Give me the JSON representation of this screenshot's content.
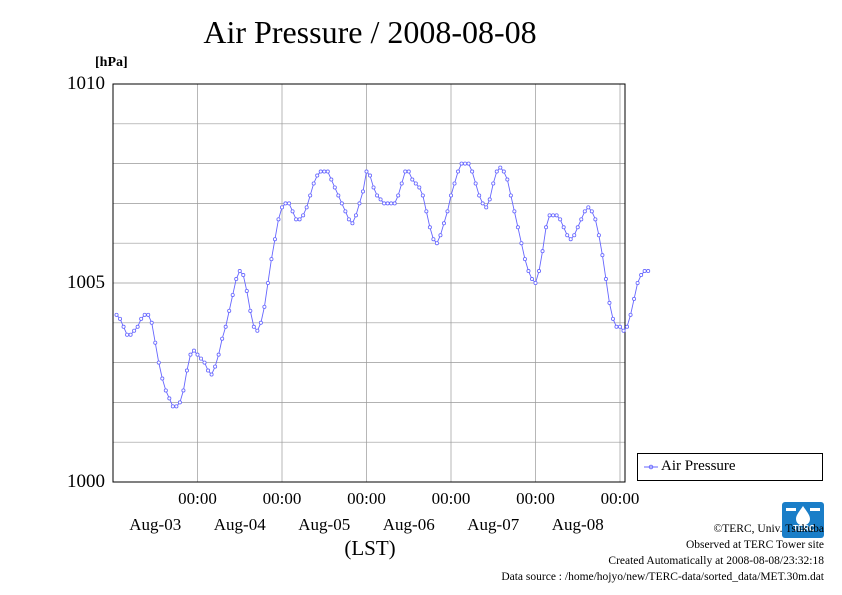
{
  "chart_data": {
    "type": "line",
    "title": "Air Pressure / 2008-08-08",
    "unit": "[hPa]",
    "xlabel": "(LST)",
    "ylim": [
      1000,
      1010
    ],
    "yticks": [
      "1010",
      "1005",
      "1000"
    ],
    "xticks": [
      {
        "time": "00:00",
        "date": "Aug-03"
      },
      {
        "time": "00:00",
        "date": "Aug-04"
      },
      {
        "time": "00:00",
        "date": "Aug-05"
      },
      {
        "time": "00:00",
        "date": "Aug-06"
      },
      {
        "time": "00:00",
        "date": "Aug-07"
      },
      {
        "time": "00:00",
        "date": "Aug-08"
      }
    ],
    "grid": true,
    "legend_position": "right",
    "series": [
      {
        "name": "Air Pressure",
        "color": "#6666ff",
        "x_start": "2008-08-02 01:00",
        "x_step": "1 hour",
        "values": [
          1004.2,
          1004.1,
          1003.9,
          1003.7,
          1003.7,
          1003.8,
          1003.9,
          1004.1,
          1004.2,
          1004.2,
          1004.0,
          1003.5,
          1003.0,
          1002.6,
          1002.3,
          1002.1,
          1001.9,
          1001.9,
          1002.0,
          1002.3,
          1002.8,
          1003.2,
          1003.3,
          1003.2,
          1003.1,
          1003.0,
          1002.8,
          1002.7,
          1002.9,
          1003.2,
          1003.6,
          1003.9,
          1004.3,
          1004.7,
          1005.1,
          1005.3,
          1005.2,
          1004.8,
          1004.3,
          1003.9,
          1003.8,
          1004.0,
          1004.4,
          1005.0,
          1005.6,
          1006.1,
          1006.6,
          1006.9,
          1007.0,
          1007.0,
          1006.8,
          1006.6,
          1006.6,
          1006.7,
          1006.9,
          1007.2,
          1007.5,
          1007.7,
          1007.8,
          1007.8,
          1007.8,
          1007.6,
          1007.4,
          1007.2,
          1007.0,
          1006.8,
          1006.6,
          1006.5,
          1006.7,
          1007.0,
          1007.3,
          1007.8,
          1007.7,
          1007.4,
          1007.2,
          1007.1,
          1007.0,
          1007.0,
          1007.0,
          1007.0,
          1007.2,
          1007.5,
          1007.8,
          1007.8,
          1007.6,
          1007.5,
          1007.4,
          1007.2,
          1006.8,
          1006.4,
          1006.1,
          1006.0,
          1006.2,
          1006.5,
          1006.8,
          1007.2,
          1007.5,
          1007.8,
          1008.0,
          1008.0,
          1008.0,
          1007.8,
          1007.5,
          1007.2,
          1007.0,
          1006.9,
          1007.1,
          1007.5,
          1007.8,
          1007.9,
          1007.8,
          1007.6,
          1007.2,
          1006.8,
          1006.4,
          1006.0,
          1005.6,
          1005.3,
          1005.1,
          1005.0,
          1005.3,
          1005.8,
          1006.4,
          1006.7,
          1006.7,
          1006.7,
          1006.6,
          1006.4,
          1006.2,
          1006.1,
          1006.2,
          1006.4,
          1006.6,
          1006.8,
          1006.9,
          1006.8,
          1006.6,
          1006.2,
          1005.7,
          1005.1,
          1004.5,
          1004.1,
          1003.9,
          1003.9,
          1003.8,
          1003.9,
          1004.2,
          1004.6,
          1005.0,
          1005.2,
          1005.3,
          1005.3
        ]
      }
    ]
  },
  "legend": {
    "label": "Air Pressure"
  },
  "footer": {
    "credit": "©TERC, Univ. Tsukuba",
    "site": "Observed at TERC Tower site",
    "created": "Created Automatically at 2008-08-08/23:32:18",
    "source": "Data source : /home/hojyo/new/TERC-data/sorted_data/MET.30m.dat"
  },
  "logo": {
    "text": "TERC",
    "color": "#1a7ec8"
  }
}
